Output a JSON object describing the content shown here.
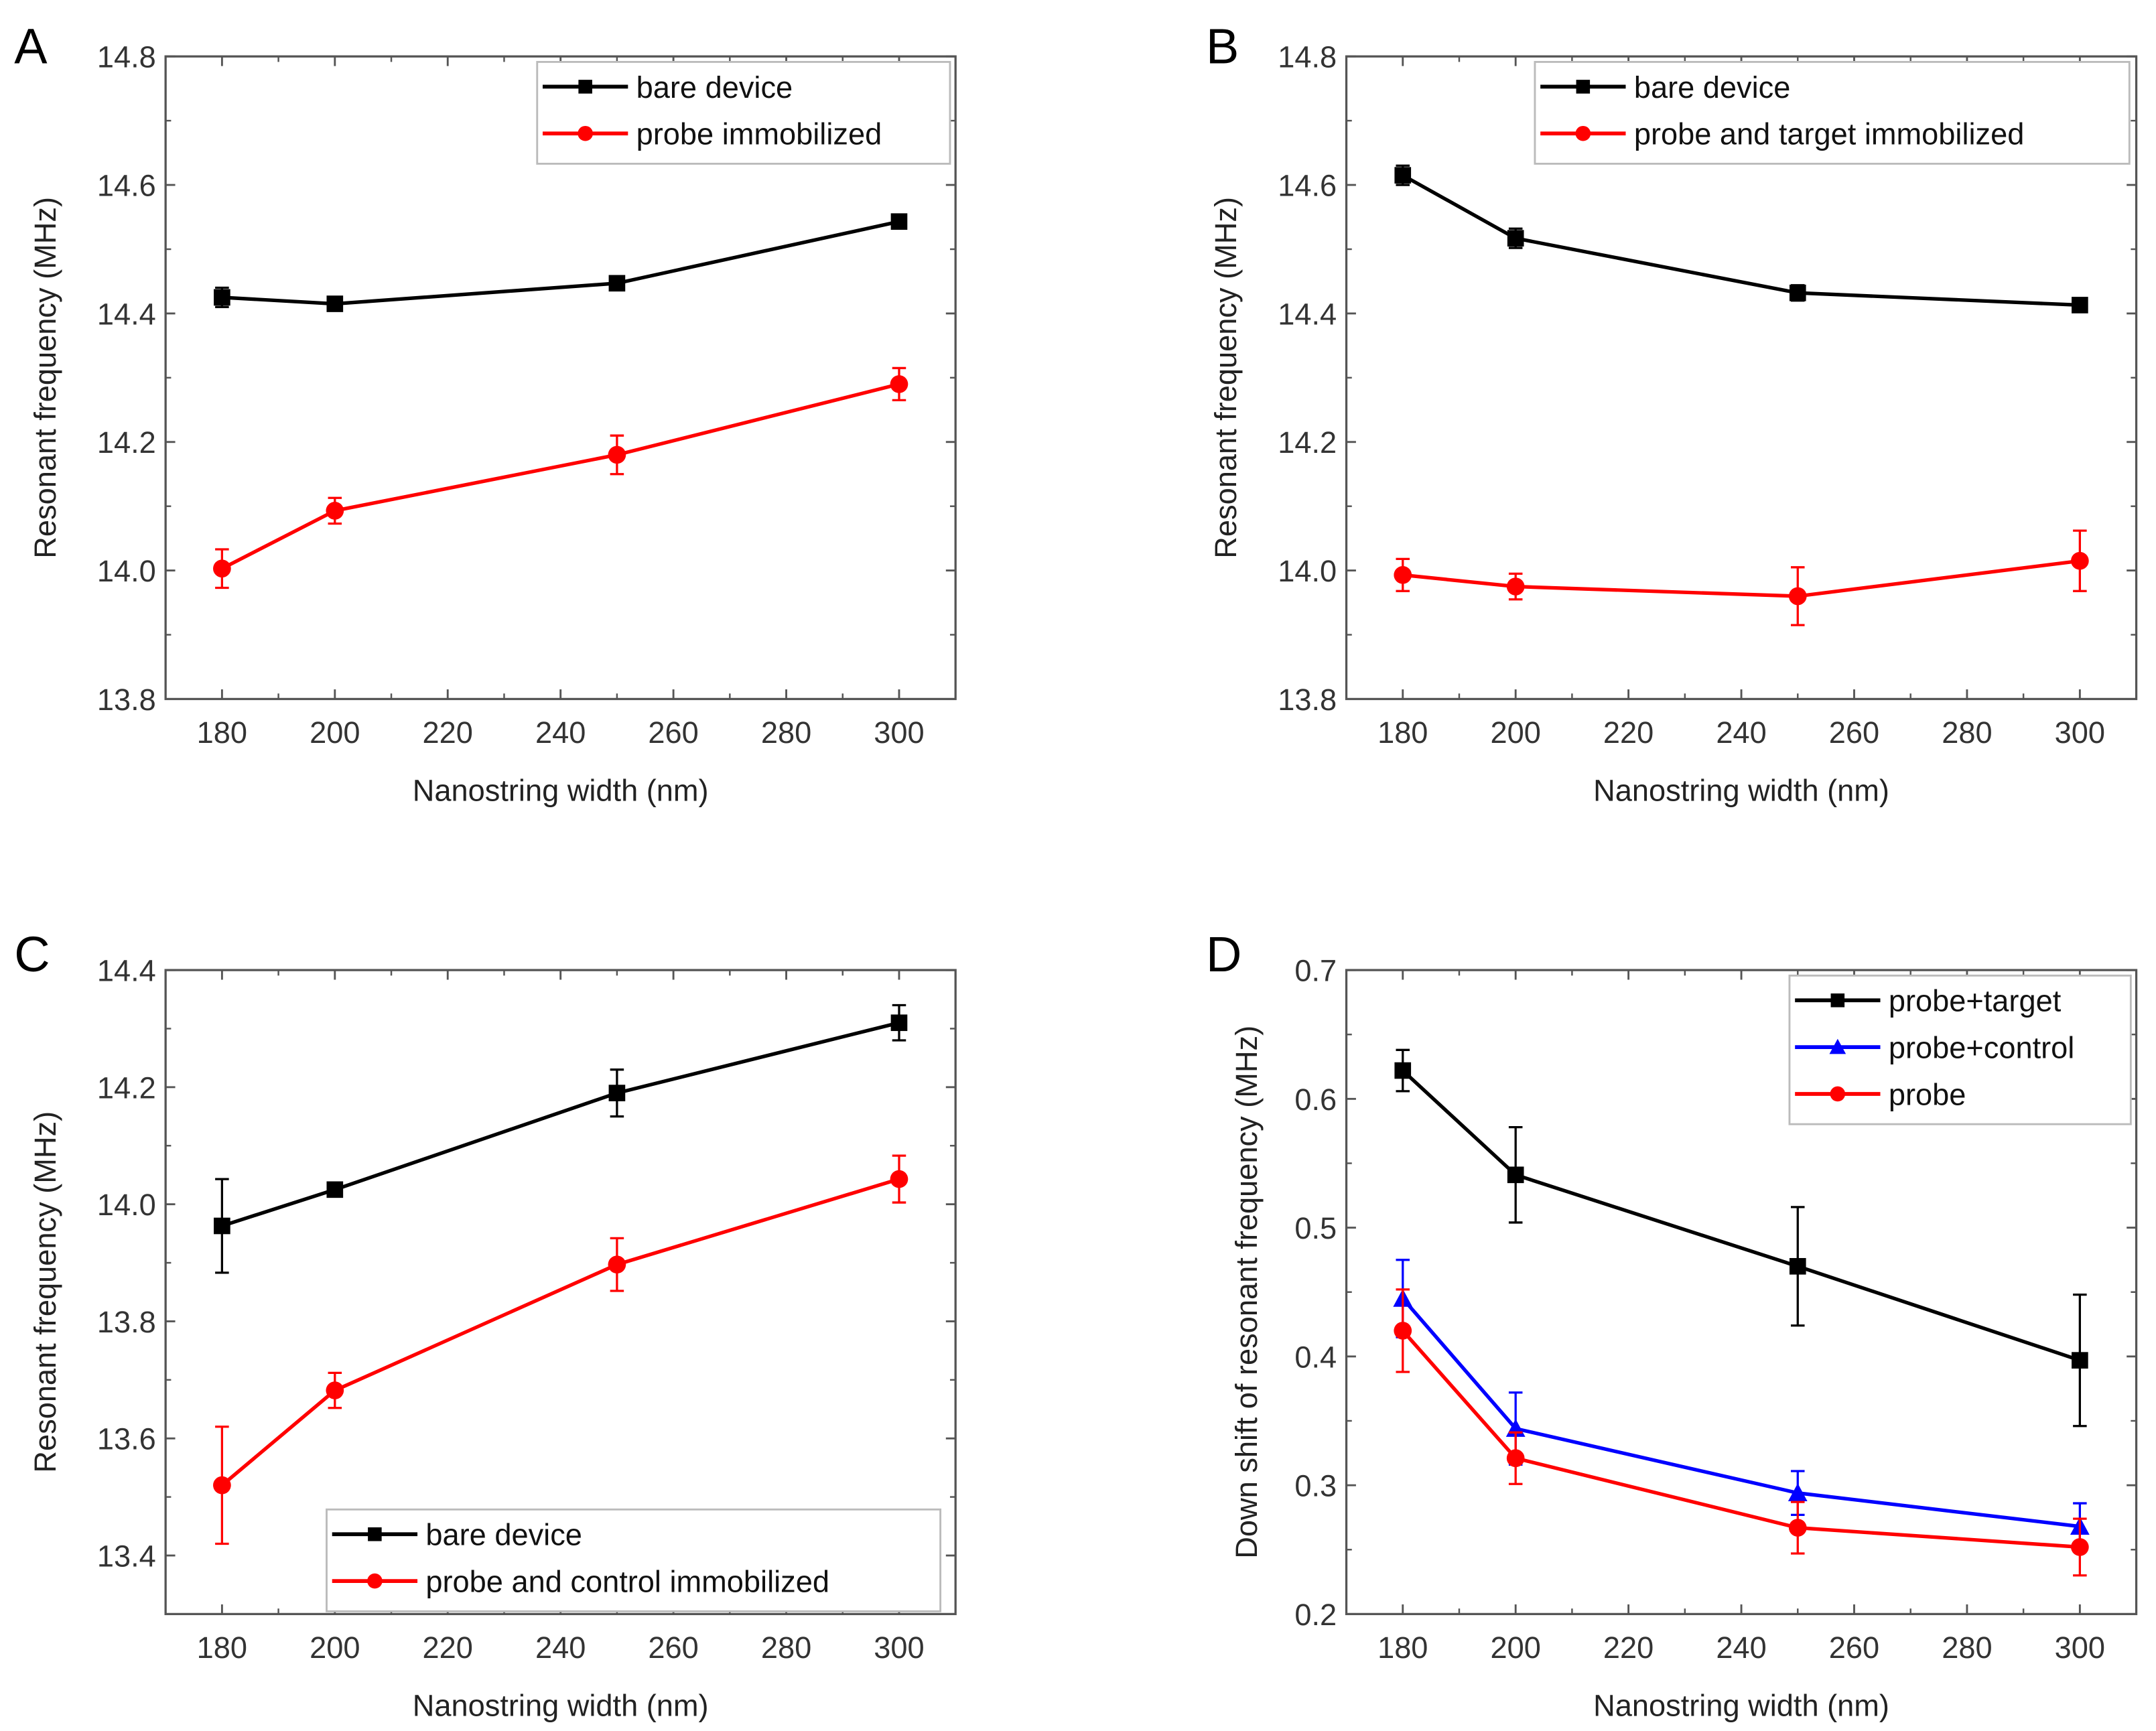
{
  "chart_data": [
    {
      "type": "line",
      "panel_label": "A",
      "xlabel": "Nanostring width (nm)",
      "ylabel": "Resonant frequency (MHz)",
      "xlim": [
        170,
        310
      ],
      "ylim": [
        13.8,
        14.8
      ],
      "xticks": [
        180,
        200,
        220,
        240,
        260,
        280,
        300
      ],
      "yticks": [
        "13.8",
        "14.0",
        "14.2",
        "14.4",
        "14.6",
        "14.8"
      ],
      "legend_position": "top-right",
      "x": [
        180,
        200,
        250,
        300
      ],
      "series": [
        {
          "name": "bare device",
          "color": "#000000",
          "marker": "square",
          "values": [
            14.425,
            14.415,
            14.447,
            14.543
          ],
          "errors": [
            0.015,
            0.01,
            0.006,
            0.006
          ]
        },
        {
          "name": "probe immobilized",
          "color": "#ff0000",
          "marker": "circle",
          "values": [
            14.003,
            14.093,
            14.18,
            14.29
          ],
          "errors": [
            0.03,
            0.02,
            0.03,
            0.025
          ]
        }
      ]
    },
    {
      "type": "line",
      "panel_label": "B",
      "xlabel": "Nanostring width (nm)",
      "ylabel": "Resonant frequency (MHz)",
      "xlim": [
        170,
        310
      ],
      "ylim": [
        13.8,
        14.8
      ],
      "xticks": [
        180,
        200,
        220,
        240,
        260,
        280,
        300
      ],
      "yticks": [
        "13.8",
        "14.0",
        "14.2",
        "14.4",
        "14.6",
        "14.8"
      ],
      "legend_position": "top-right",
      "x": [
        180,
        200,
        250,
        300
      ],
      "series": [
        {
          "name": "bare device",
          "color": "#000000",
          "marker": "square",
          "values": [
            14.615,
            14.517,
            14.432,
            14.413
          ],
          "errors": [
            0.015,
            0.015,
            0.012,
            0.007
          ]
        },
        {
          "name": "probe and target immobilized",
          "color": "#ff0000",
          "marker": "circle",
          "values": [
            13.993,
            13.975,
            13.96,
            14.015
          ],
          "errors": [
            0.025,
            0.02,
            0.045,
            0.047
          ]
        }
      ]
    },
    {
      "type": "line",
      "panel_label": "C",
      "xlabel": "Nanostring width (nm)",
      "ylabel": "Resonant frequency (MHz)",
      "xlim": [
        170,
        310
      ],
      "ylim": [
        13.3,
        14.4
      ],
      "xticks": [
        180,
        200,
        220,
        240,
        260,
        280,
        300
      ],
      "yticks": [
        "13.4",
        "13.6",
        "13.8",
        "14.0",
        "14.2",
        "14.4"
      ],
      "legend_position": "bottom-right",
      "x": [
        180,
        200,
        250,
        300
      ],
      "series": [
        {
          "name": "bare device",
          "color": "#000000",
          "marker": "square",
          "values": [
            13.963,
            14.025,
            14.19,
            14.31
          ],
          "errors": [
            0.08,
            0.01,
            0.04,
            0.03
          ]
        },
        {
          "name": "probe and control immobilized",
          "color": "#ff0000",
          "marker": "circle",
          "values": [
            13.52,
            13.682,
            13.897,
            14.043
          ],
          "errors": [
            0.1,
            0.03,
            0.045,
            0.04
          ]
        }
      ]
    },
    {
      "type": "line",
      "panel_label": "D",
      "xlabel": "Nanostring width (nm)",
      "ylabel": "Down shift of resonant frequency (MHz)",
      "xlim": [
        170,
        310
      ],
      "ylim": [
        0.2,
        0.7
      ],
      "xticks": [
        180,
        200,
        220,
        240,
        260,
        280,
        300
      ],
      "yticks": [
        "0.2",
        "0.3",
        "0.4",
        "0.5",
        "0.6",
        "0.7"
      ],
      "legend_position": "top-right",
      "x": [
        180,
        200,
        250,
        300
      ],
      "series": [
        {
          "name": "probe+target",
          "color": "#000000",
          "marker": "square",
          "values": [
            0.622,
            0.541,
            0.47,
            0.397
          ],
          "errors": [
            0.016,
            0.037,
            0.046,
            0.051
          ]
        },
        {
          "name": "probe+control",
          "color": "#0000ff",
          "marker": "triangle",
          "values": [
            0.445,
            0.344,
            0.294,
            0.268
          ],
          "errors": [
            0.03,
            0.028,
            0.017,
            0.018
          ]
        },
        {
          "name": "probe",
          "color": "#ff0000",
          "marker": "circle",
          "values": [
            0.42,
            0.321,
            0.267,
            0.252
          ],
          "errors": [
            0.032,
            0.02,
            0.02,
            0.022
          ]
        }
      ]
    }
  ]
}
